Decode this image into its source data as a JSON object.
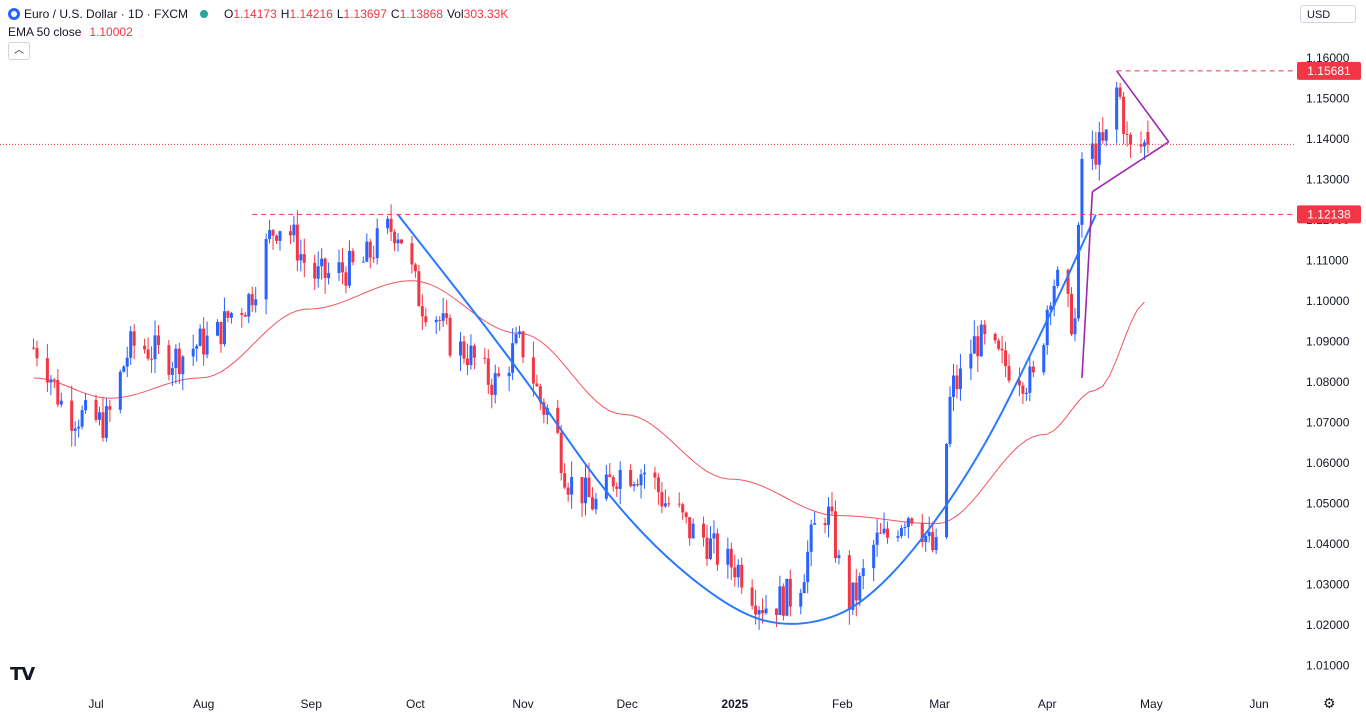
{
  "header": {
    "symbol": "Euro / U.S. Dollar · 1D · FXCM",
    "open_label": "O",
    "open": "1.14173",
    "high_label": "H",
    "high": "1.14216",
    "low_label": "L",
    "low": "1.13697",
    "close_label": "C",
    "close": "1.13868",
    "volume_label": "Vol",
    "volume": "303.33K",
    "ema_label": "EMA 50 close",
    "ema_value": "1.10002",
    "collapse_icon": "chevron-up-icon",
    "currency": "USD",
    "brand": "TV"
  },
  "colors": {
    "up": "#2962ff",
    "down": "#f23645",
    "ema": "#f23645",
    "cup_curve": "#2979ff",
    "pattern": "#9c27b0",
    "price_tag": "#f23645"
  },
  "chart_data": {
    "type": "candlestick",
    "instrument": "EUR/USD",
    "timeframe": "1D",
    "ylim": [
      1.005,
      1.163
    ],
    "yticks": [
      1.16,
      1.15,
      1.14,
      1.13,
      1.12,
      1.11,
      1.1,
      1.09,
      1.08,
      1.07,
      1.06,
      1.05,
      1.04,
      1.03,
      1.02,
      1.01
    ],
    "ytick_labels": [
      "1.16000",
      "1.15000",
      "1.14000",
      "1.13000",
      "1.12000",
      "1.11000",
      "1.10000",
      "1.09000",
      "1.08000",
      "1.07000",
      "1.06000",
      "1.05000",
      "1.04000",
      "1.03000",
      "1.02000",
      "1.01000"
    ],
    "x_labels": [
      "Jul",
      "Aug",
      "Sep",
      "Oct",
      "Nov",
      "Dec",
      "2025",
      "Feb",
      "Mar",
      "Apr",
      "May",
      "Jun"
    ],
    "x_label_dates": [
      "2024-07-01",
      "2024-08-01",
      "2024-09-01",
      "2024-10-01",
      "2024-11-01",
      "2024-12-01",
      "2025-01-01",
      "2025-02-01",
      "2025-03-01",
      "2025-04-01",
      "2025-05-01",
      "2025-06-01"
    ],
    "date_range": [
      "2024-06-13",
      "2025-06-17"
    ],
    "close_series": [
      [
        "2024-06-13",
        1.0885
      ],
      [
        "2024-06-24",
        1.072
      ],
      [
        "2024-07-03",
        1.07
      ],
      [
        "2024-07-12",
        1.089
      ],
      [
        "2024-07-23",
        1.086
      ],
      [
        "2024-08-02",
        1.09
      ],
      [
        "2024-08-12",
        1.099
      ],
      [
        "2024-08-23",
        1.119
      ],
      [
        "2024-09-03",
        1.106
      ],
      [
        "2024-09-13",
        1.108
      ],
      [
        "2024-09-25",
        1.118
      ],
      [
        "2024-10-04",
        1.099
      ],
      [
        "2024-10-14",
        1.088
      ],
      [
        "2024-10-24",
        1.08
      ],
      [
        "2024-10-31",
        1.089
      ],
      [
        "2024-11-08",
        1.073
      ],
      [
        "2024-11-15",
        1.055
      ],
      [
        "2024-11-22",
        1.05
      ],
      [
        "2024-11-29",
        1.058
      ],
      [
        "2024-12-06",
        1.058
      ],
      [
        "2024-12-13",
        1.05
      ],
      [
        "2024-12-20",
        1.043
      ],
      [
        "2024-12-31",
        1.035
      ],
      [
        "2025-01-10",
        1.025
      ],
      [
        "2025-01-17",
        1.027
      ],
      [
        "2025-01-27",
        1.048
      ],
      [
        "2025-02-03",
        1.026
      ],
      [
        "2025-02-12",
        1.041
      ],
      [
        "2025-02-21",
        1.048
      ],
      [
        "2025-02-28",
        1.038
      ],
      [
        "2025-03-05",
        1.079
      ],
      [
        "2025-03-12",
        1.09
      ],
      [
        "2025-03-21",
        1.084
      ],
      [
        "2025-03-28",
        1.08
      ],
      [
        "2025-04-03",
        1.105
      ],
      [
        "2025-04-09",
        1.095
      ],
      [
        "2025-04-11",
        1.135
      ],
      [
        "2025-04-17",
        1.138
      ],
      [
        "2025-04-21",
        1.152
      ],
      [
        "2025-04-25",
        1.137
      ],
      [
        "2025-04-30",
        1.1387
      ]
    ],
    "ema50_series": [
      [
        "2024-06-13",
        1.081
      ],
      [
        "2024-07-05",
        1.076
      ],
      [
        "2024-07-31",
        1.081
      ],
      [
        "2024-08-31",
        1.098
      ],
      [
        "2024-09-30",
        1.105
      ],
      [
        "2024-10-31",
        1.092
      ],
      [
        "2024-11-30",
        1.072
      ],
      [
        "2024-12-31",
        1.056
      ],
      [
        "2025-01-31",
        1.047
      ],
      [
        "2025-02-28",
        1.045
      ],
      [
        "2025-03-31",
        1.067
      ],
      [
        "2025-04-15",
        1.078
      ],
      [
        "2025-04-30",
        1.1
      ]
    ],
    "last_price": 1.13868,
    "resistance_levels": [
      {
        "value": 1.15681,
        "label": "1.15681",
        "from": "2025-04-21",
        "to": "2025-06-17"
      },
      {
        "value": 1.12138,
        "label": "1.12138",
        "from": "2024-08-15",
        "to": "2025-06-17"
      }
    ],
    "cup_curve": [
      [
        "2024-09-26",
        1.1213
      ],
      [
        "2024-10-31",
        1.083
      ],
      [
        "2024-11-30",
        1.046
      ],
      [
        "2024-12-31",
        1.023
      ],
      [
        "2025-01-20",
        1.019
      ],
      [
        "2025-02-10",
        1.026
      ],
      [
        "2025-03-10",
        1.057
      ],
      [
        "2025-04-01",
        1.095
      ],
      [
        "2025-04-15",
        1.1213
      ]
    ],
    "triangle": {
      "upper": [
        [
          "2025-04-21",
          1.1568
        ],
        [
          "2025-05-06",
          1.1393
        ]
      ],
      "lower": [
        [
          "2025-04-14",
          1.127
        ],
        [
          "2025-05-06",
          1.1393
        ]
      ],
      "flagpole": [
        [
          "2025-04-11",
          1.081
        ],
        [
          "2025-04-14",
          1.127
        ]
      ]
    }
  }
}
